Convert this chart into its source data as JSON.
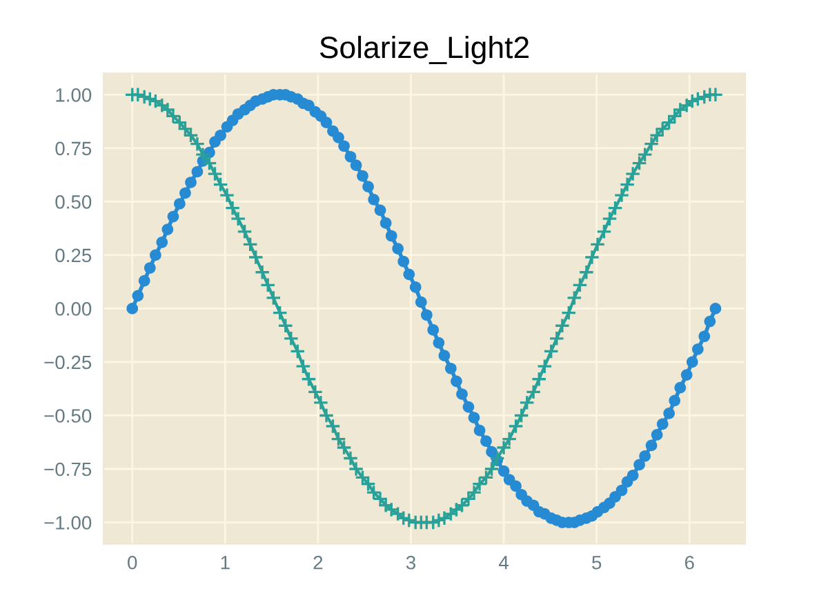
{
  "chart_data": {
    "type": "line",
    "title": "Solarize_Light2",
    "x": [
      0.0,
      0.06,
      0.13,
      0.19,
      0.25,
      0.32,
      0.38,
      0.44,
      0.51,
      0.57,
      0.63,
      0.7,
      0.76,
      0.83,
      0.89,
      0.95,
      1.02,
      1.08,
      1.14,
      1.21,
      1.27,
      1.33,
      1.4,
      1.46,
      1.52,
      1.59,
      1.65,
      1.71,
      1.78,
      1.84,
      1.9,
      1.97,
      2.03,
      2.09,
      2.16,
      2.22,
      2.28,
      2.35,
      2.41,
      2.48,
      2.54,
      2.6,
      2.67,
      2.73,
      2.79,
      2.86,
      2.92,
      2.98,
      3.05,
      3.11,
      3.17,
      3.24,
      3.3,
      3.36,
      3.43,
      3.49,
      3.55,
      3.62,
      3.68,
      3.74,
      3.81,
      3.87,
      3.93,
      4.0,
      4.06,
      4.13,
      4.19,
      4.25,
      4.32,
      4.38,
      4.44,
      4.51,
      4.57,
      4.63,
      4.7,
      4.76,
      4.82,
      4.89,
      4.95,
      5.01,
      5.08,
      5.14,
      5.2,
      5.27,
      5.33,
      5.39,
      5.46,
      5.52,
      5.59,
      5.65,
      5.71,
      5.78,
      5.84,
      5.9,
      5.97,
      6.03,
      6.09,
      6.16,
      6.22,
      6.28
    ],
    "series": [
      {
        "color": "#268bd2",
        "marker": "circle",
        "values": [
          0.0,
          0.06,
          0.13,
          0.19,
          0.25,
          0.31,
          0.37,
          0.43,
          0.49,
          0.54,
          0.59,
          0.64,
          0.69,
          0.73,
          0.78,
          0.81,
          0.85,
          0.88,
          0.91,
          0.93,
          0.95,
          0.97,
          0.98,
          0.99,
          1.0,
          1.0,
          1.0,
          0.99,
          0.98,
          0.96,
          0.95,
          0.92,
          0.9,
          0.87,
          0.83,
          0.8,
          0.76,
          0.71,
          0.67,
          0.62,
          0.57,
          0.51,
          0.46,
          0.4,
          0.34,
          0.28,
          0.22,
          0.16,
          0.1,
          0.03,
          -0.03,
          -0.1,
          -0.16,
          -0.22,
          -0.28,
          -0.34,
          -0.4,
          -0.46,
          -0.51,
          -0.57,
          -0.62,
          -0.67,
          -0.71,
          -0.76,
          -0.8,
          -0.83,
          -0.87,
          -0.9,
          -0.92,
          -0.95,
          -0.96,
          -0.98,
          -0.99,
          -1.0,
          -1.0,
          -1.0,
          -0.99,
          -0.98,
          -0.97,
          -0.95,
          -0.93,
          -0.91,
          -0.88,
          -0.85,
          -0.81,
          -0.78,
          -0.73,
          -0.69,
          -0.64,
          -0.59,
          -0.54,
          -0.49,
          -0.43,
          -0.37,
          -0.31,
          -0.25,
          -0.19,
          -0.13,
          -0.06,
          0.0
        ]
      },
      {
        "color": "#2aa198",
        "marker": "cross",
        "values": [
          1.0,
          1.0,
          0.99,
          0.98,
          0.97,
          0.95,
          0.93,
          0.9,
          0.87,
          0.84,
          0.81,
          0.77,
          0.72,
          0.68,
          0.63,
          0.58,
          0.53,
          0.47,
          0.42,
          0.36,
          0.3,
          0.24,
          0.17,
          0.11,
          0.05,
          -0.02,
          -0.08,
          -0.14,
          -0.2,
          -0.27,
          -0.33,
          -0.39,
          -0.44,
          -0.5,
          -0.55,
          -0.61,
          -0.65,
          -0.7,
          -0.75,
          -0.79,
          -0.82,
          -0.86,
          -0.89,
          -0.92,
          -0.94,
          -0.96,
          -0.98,
          -0.99,
          -1.0,
          -1.0,
          -1.0,
          -1.0,
          -0.99,
          -0.98,
          -0.96,
          -0.94,
          -0.92,
          -0.89,
          -0.86,
          -0.82,
          -0.79,
          -0.75,
          -0.7,
          -0.65,
          -0.61,
          -0.55,
          -0.5,
          -0.44,
          -0.39,
          -0.33,
          -0.27,
          -0.2,
          -0.14,
          -0.08,
          -0.02,
          0.05,
          0.11,
          0.17,
          0.24,
          0.3,
          0.36,
          0.42,
          0.47,
          0.53,
          0.58,
          0.63,
          0.68,
          0.72,
          0.77,
          0.81,
          0.84,
          0.87,
          0.9,
          0.93,
          0.95,
          0.97,
          0.98,
          0.99,
          1.0,
          1.0
        ]
      }
    ],
    "xlim": [
      -0.31,
      6.6
    ],
    "ylim": [
      -1.1,
      1.1
    ],
    "xticks": [
      0,
      1,
      2,
      3,
      4,
      5,
      6
    ],
    "yticks": [
      {
        "value": -1,
        "label": "−1.00"
      },
      {
        "value": -0.75,
        "label": "−0.75"
      },
      {
        "value": -0.5,
        "label": "−0.50"
      },
      {
        "value": -0.25,
        "label": "−0.25"
      },
      {
        "value": 0,
        "label": "0.00"
      },
      {
        "value": 0.25,
        "label": "0.25"
      },
      {
        "value": 0.5,
        "label": "0.50"
      },
      {
        "value": 0.75,
        "label": "0.75"
      },
      {
        "value": 1,
        "label": "1.00"
      }
    ],
    "grid": true
  }
}
